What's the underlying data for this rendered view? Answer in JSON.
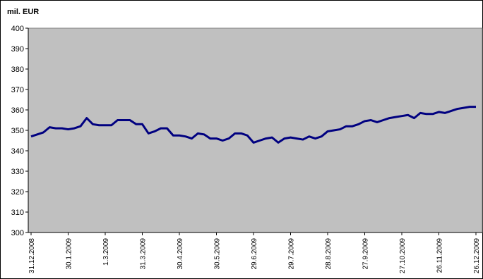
{
  "chart_data": {
    "type": "line",
    "title": "mil. EUR",
    "categories": [
      "31.12.2008",
      null,
      null,
      null,
      null,
      null,
      "30.1.2009",
      null,
      null,
      null,
      null,
      null,
      "1.3.2009",
      null,
      null,
      null,
      null,
      null,
      "31.3.2009",
      null,
      null,
      null,
      null,
      null,
      "30.4.2009",
      null,
      null,
      null,
      null,
      null,
      "30.5.2009",
      null,
      null,
      null,
      null,
      null,
      "29.6.2009",
      null,
      null,
      null,
      null,
      null,
      "29.7.2009",
      null,
      null,
      null,
      null,
      null,
      "28.8.2009",
      null,
      null,
      null,
      null,
      null,
      "27.9.2009",
      null,
      null,
      null,
      null,
      null,
      "27.10.2009",
      null,
      null,
      null,
      null,
      null,
      "26.11.2009",
      null,
      null,
      null,
      null,
      null,
      "26.12.2009"
    ],
    "series": [
      {
        "color": "#000080",
        "values": [
          347,
          348,
          349,
          351.5,
          351,
          351,
          350.5,
          351,
          352,
          356,
          353,
          352.5,
          352.5,
          352.5,
          355,
          355,
          355,
          353,
          353,
          348.5,
          349.5,
          351,
          351,
          347.5,
          347.5,
          347,
          346,
          348.5,
          348,
          346,
          346,
          345,
          346,
          348.5,
          348.5,
          347.5,
          344,
          345,
          346,
          346.5,
          344,
          346,
          346.5,
          346,
          345.5,
          347,
          346,
          347,
          349.5,
          350,
          350.5,
          352,
          352,
          353,
          354.5,
          355,
          354,
          355,
          356,
          356.5,
          357,
          357.5,
          356,
          358.5,
          358,
          358,
          359,
          358.5,
          359.5,
          360.5,
          361,
          361.5,
          361.5
        ]
      }
    ],
    "ylim": [
      300,
      400
    ],
    "yticks": [
      300,
      310,
      320,
      330,
      340,
      350,
      360,
      370,
      380,
      390,
      400
    ],
    "plot_background": "#c0c0c0"
  }
}
